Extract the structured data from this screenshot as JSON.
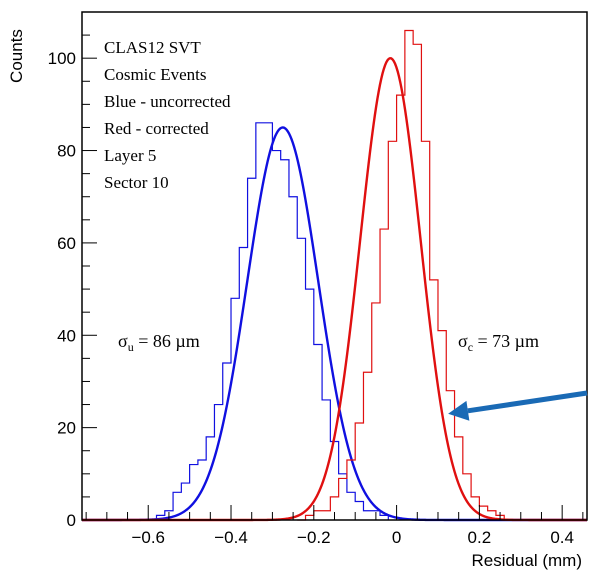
{
  "chart_data": {
    "type": "histogram",
    "xlabel": "Residual (mm)",
    "ylabel": "Counts",
    "xlim": [
      -0.76,
      0.46
    ],
    "ylim": [
      0,
      110
    ],
    "x_ticks": [
      -0.6,
      -0.4,
      -0.2,
      0,
      0.2,
      0.4
    ],
    "x_tick_labels": [
      "−0.6",
      "−0.4",
      "−0.2",
      "0",
      "0.2",
      "0.4"
    ],
    "y_ticks": [
      0,
      20,
      40,
      60,
      80,
      100
    ],
    "y_tick_labels": [
      "0",
      "20",
      "40",
      "60",
      "80",
      "100"
    ],
    "legend_lines": [
      "CLAS12 SVT",
      "Cosmic Events",
      "Blue - uncorrected",
      "Red - corrected",
      "Layer 5",
      "Sector 10"
    ],
    "legend_placement": "top-left",
    "annotations": {
      "sigma_u": {
        "symbol": "σ",
        "sub": "u",
        "text": " = 86 µm"
      },
      "sigma_c": {
        "symbol": "σ",
        "sub": "c",
        "text": " = 73 µm"
      }
    },
    "bin_width": 0.02,
    "series": [
      {
        "color": "#1010e0",
        "hist_x_start": -0.58,
        "counts": [
          1,
          2,
          6,
          8,
          12,
          13,
          18,
          25,
          34,
          48,
          59,
          74,
          86,
          86,
          80,
          78,
          70,
          61,
          50,
          38,
          26,
          17,
          10,
          6,
          4,
          2,
          2,
          1
        ],
        "fit": {
          "mean": -0.275,
          "amplitude": 85,
          "sigma": 0.086
        }
      },
      {
        "color": "#e01010",
        "hist_x_start": -0.24,
        "counts": [
          0,
          1,
          2,
          2,
          5,
          9,
          13,
          21,
          32,
          47,
          63,
          82,
          92,
          106,
          103,
          82,
          52,
          41,
          28,
          18,
          10,
          5,
          3,
          2,
          1,
          0
        ],
        "fit": {
          "mean": -0.015,
          "amplitude": 100,
          "sigma": 0.073
        }
      }
    ],
    "arrow": {
      "color": "#1a6ab5",
      "points_to": [
        0.11,
        23
      ]
    }
  }
}
